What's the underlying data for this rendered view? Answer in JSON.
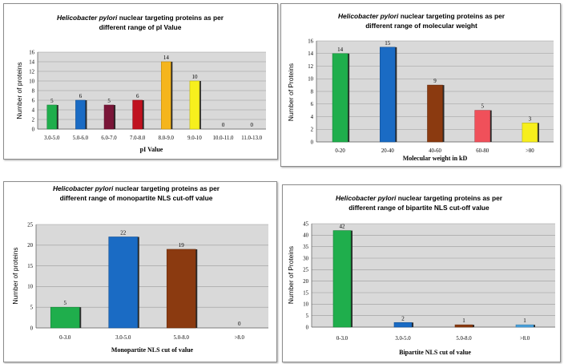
{
  "chart_data": [
    {
      "type": "bar",
      "title_italic": "Helicobacter pylori",
      "title_line1_rest": " nuclear targeting proteins as per",
      "title_line2": "different range of pI Value",
      "xlabel": "pI Value",
      "ylabel": "Number of proteins",
      "ylim": [
        0,
        16
      ],
      "yticks": [
        0,
        2,
        4,
        6,
        8,
        10,
        12,
        14,
        16
      ],
      "categories": [
        "3.0-5.0",
        "5.0-6.0",
        "6.0-7.0",
        "7.0-8.0",
        "8.0-9.0",
        "9.0-10",
        "10.0-11.0",
        "11.0-13.0"
      ],
      "values": [
        5,
        6,
        5,
        6,
        14,
        10,
        0,
        0
      ],
      "colors": [
        "#1fae4c",
        "#1a6bc4",
        "#7a1538",
        "#c0121f",
        "#f5b51d",
        "#f7ef1d",
        "#888888",
        "#888888"
      ]
    },
    {
      "type": "bar",
      "title_italic": "Helicobacter pylori",
      "title_line1_rest": " nuclear targeting  proteins as per",
      "title_line2": "different range of  molecular weight",
      "xlabel": "Molecular weight in kD",
      "ylabel": "Number of Proteins",
      "ylim": [
        0,
        16
      ],
      "yticks": [
        0,
        2,
        4,
        6,
        8,
        10,
        12,
        14,
        16
      ],
      "categories": [
        "0-20",
        "20-40",
        "40-60",
        "60-80",
        ">80"
      ],
      "values": [
        14,
        15,
        9,
        5,
        3
      ],
      "colors": [
        "#1fae4c",
        "#1a6bc4",
        "#8b3a10",
        "#f0505a",
        "#f7ef1d"
      ]
    },
    {
      "type": "bar",
      "title_italic": "Helicobacter pylori",
      "title_line1_rest": " nuclear targeting proteins as per",
      "title_line2": "different range of monopartite NLS cut-off value",
      "xlabel": "Monopartite NLS cut of value",
      "ylabel": "Number of proteins",
      "ylim": [
        0,
        25
      ],
      "yticks": [
        0,
        5,
        10,
        15,
        20,
        25
      ],
      "categories": [
        "0-3.0",
        "3.0-5.0",
        "5.0-8.0",
        ">8.0"
      ],
      "values": [
        5,
        22,
        19,
        0
      ],
      "colors": [
        "#1fae4c",
        "#1a6bc4",
        "#8b3a10",
        "#888888"
      ]
    },
    {
      "type": "bar",
      "title_italic": "Helicobacter pylori",
      "title_line1_rest": " nuclear targeting proteins as per",
      "title_line2": "different range of  bipartite NLS cut-off value",
      "xlabel": "Bipartite NLS cut of value",
      "ylabel": "Number of Proteins",
      "ylim": [
        0,
        45
      ],
      "yticks": [
        0,
        5,
        10,
        15,
        20,
        25,
        30,
        35,
        40,
        45
      ],
      "categories": [
        "0-3.0",
        "3.0-5.0",
        "5.0-8.0",
        ">8.0"
      ],
      "values": [
        42,
        2,
        1,
        1
      ],
      "colors": [
        "#1fae4c",
        "#1a6bc4",
        "#8b3a10",
        "#4aa3df"
      ]
    }
  ]
}
